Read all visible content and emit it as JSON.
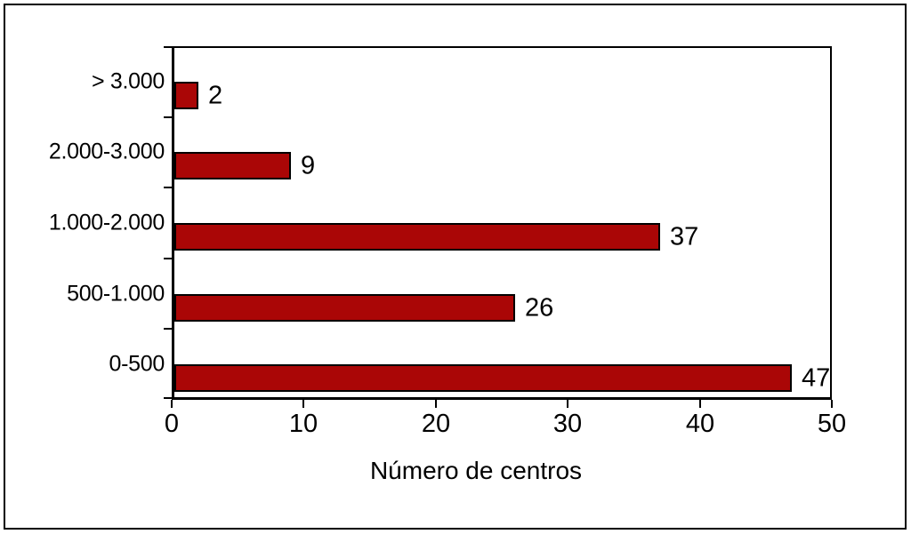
{
  "figure": {
    "background_color": "#ffffff",
    "border_color": "#000000"
  },
  "chart_data": {
    "type": "bar",
    "orientation": "horizontal",
    "title": "",
    "xlabel": "Número de centros",
    "ylabel": "",
    "categories": [
      "> 3.000",
      "2.000-3.000",
      "1.000-2.000",
      "500-1.000",
      "0-500"
    ],
    "values": [
      2,
      9,
      37,
      26,
      47
    ],
    "value_labels": [
      "2",
      "9",
      "37",
      "26",
      "47"
    ],
    "x_ticks": [
      "0",
      "10",
      "20",
      "30",
      "40",
      "50"
    ],
    "x_tick_values": [
      0,
      10,
      20,
      30,
      40,
      50
    ],
    "xlim": [
      0,
      50
    ],
    "grid": false,
    "legend": "none",
    "value_labels_shown": true,
    "bar_color": "#aa0606",
    "bar_border_color": "#000000",
    "axis_color": "#000000",
    "text_color": "#000000"
  }
}
